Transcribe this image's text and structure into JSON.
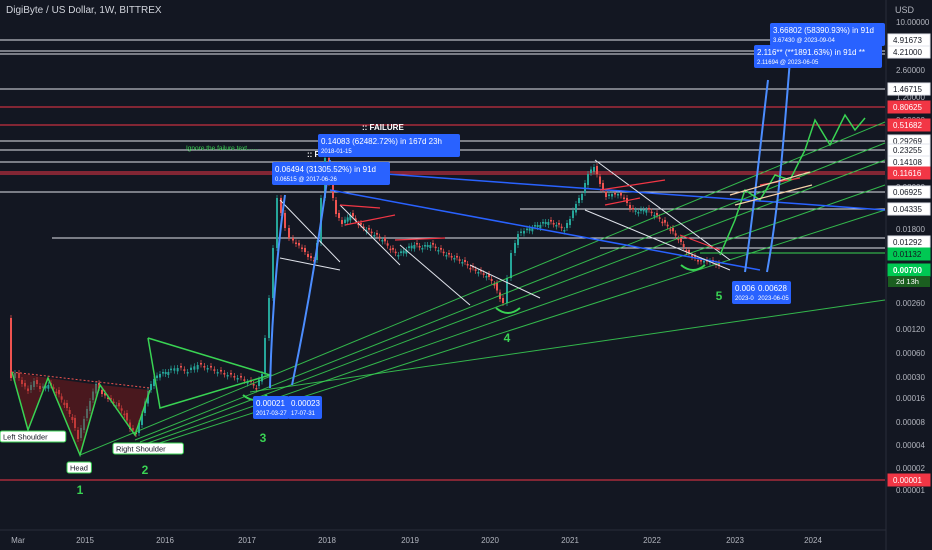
{
  "header": {
    "title": "DigiByte / US Dollar, 1W, BITTREX",
    "currency": "USD"
  },
  "colors": {
    "background": "#131722",
    "up": "#26a69a",
    "down": "#ef5350",
    "green_line": "#39d353",
    "blue_line": "#2962ff",
    "red_level": "#f23645",
    "white_level": "#e0e3eb",
    "label_blue": "#2962ff",
    "label_green": "#00c853"
  },
  "chart_data": {
    "type": "line",
    "title": "DigiByte / US Dollar, 1W, BITTREX",
    "scale": "log",
    "x_ticks": [
      "Mar",
      "2015",
      "2016",
      "2017",
      "2018",
      "2019",
      "2020",
      "2021",
      "2022",
      "2023",
      "2024"
    ],
    "y_ticks": [
      "10.00000",
      "2.60000",
      "1.20000",
      "0.60000",
      "0.08000",
      "0.04000",
      "0.01800",
      "0.00500",
      "0.00260",
      "0.00120",
      "0.00060",
      "0.00030",
      "0.00016",
      "0.00008",
      "0.00004",
      "0.00002",
      "0.00001"
    ],
    "level_labels": [
      {
        "value": "4.91673",
        "style": "white"
      },
      {
        "value": "4.21000",
        "style": "white"
      },
      {
        "value": "1.46715",
        "style": "white"
      },
      {
        "value": "0.80625",
        "style": "red"
      },
      {
        "value": "0.51682",
        "style": "red"
      },
      {
        "value": "0.29269",
        "style": "white"
      },
      {
        "value": "0.23255",
        "style": "white"
      },
      {
        "value": "0.14108",
        "style": "white"
      },
      {
        "value": "0.11616",
        "style": "red"
      },
      {
        "value": "0.06925",
        "style": "white"
      },
      {
        "value": "0.04335",
        "style": "white"
      },
      {
        "value": "0.01292",
        "style": "white"
      },
      {
        "value": "0.01132",
        "style": "green"
      },
      {
        "value": "0.00700",
        "style": "greenbox"
      },
      {
        "value": "0.00001",
        "style": "red"
      }
    ],
    "current_price": "0.00700",
    "countdown": "2d 13h",
    "annotations": [
      {
        "text": "3.66802 (58390.93%) in 91d",
        "sub": "3.67430 @ 2023-09-04"
      },
      {
        "text": "2.116** (**1891.63%) in 91d **",
        "sub": "2.11694 @ 2023-06-05"
      },
      {
        "text": "0.14083 (62482.72%) in 167d 23h",
        "sub": "2018-01-15"
      },
      {
        "text": "0.06494 (31305.52%) in 91d",
        "sub": "0.06515 @ 2017-06-26"
      },
      {
        "text": "0.00021",
        "sub": "2017-03-27"
      },
      {
        "text": "0.00023",
        "sub": "17-07-31"
      },
      {
        "text": "0.006",
        "sub": "2023-0"
      },
      {
        "text": "0.00628",
        "sub": "2023-06-05"
      }
    ],
    "labels": {
      "failure1": ":: FAILURE",
      "failure2": ":: FAILURE",
      "ignore": "Ignore the failure text......",
      "left_shoulder": "Left Shoulder",
      "head": "Head",
      "right_shoulder": "Right Shoulder"
    },
    "wave_numbers": [
      "1",
      "2",
      "3",
      "4",
      "5"
    ]
  }
}
